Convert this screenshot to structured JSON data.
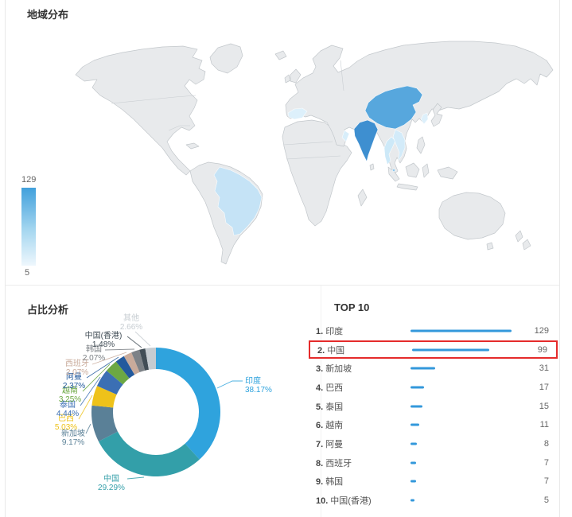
{
  "page": {
    "map_section_title": "地域分布",
    "pie_section_title": "占比分析",
    "top_section_title": "TOP 10"
  },
  "colors": {
    "map_base_fill": "#e8eaec",
    "map_border": "#c2c7cb",
    "legend_high": "#41a0dc",
    "legend_low": "#eef7fd",
    "bar_blue": "#3398db",
    "highlight_red": "#e52b2b"
  },
  "chart_data": [
    {
      "type": "choropleth",
      "title": "地域分布",
      "legend": {
        "max": 129,
        "min": 5
      },
      "regions": [
        {
          "name": "印度",
          "value": 129,
          "color": "#3e8fd0"
        },
        {
          "name": "中国",
          "value": 99,
          "color": "#57a7dd"
        },
        {
          "name": "新加坡",
          "value": 31,
          "color": "#8ec8ee"
        },
        {
          "name": "巴西",
          "value": 17,
          "color": "#c5e3f6"
        },
        {
          "name": "泰国",
          "value": 15,
          "color": "#cde9f8"
        },
        {
          "name": "越南",
          "value": 11,
          "color": "#d3ebf9"
        },
        {
          "name": "阿曼",
          "value": 8,
          "color": "#d8eefa"
        },
        {
          "name": "西班牙",
          "value": 7,
          "color": "#ddf0fb"
        },
        {
          "name": "韩国",
          "value": 7,
          "color": "#ddf0fb"
        },
        {
          "name": "中国(香港)",
          "value": 5,
          "color": "#e2f2fc"
        }
      ]
    },
    {
      "type": "pie",
      "title": "占比分析",
      "slices": [
        {
          "name": "印度",
          "pct": 38.17,
          "color": "#2fa3dd"
        },
        {
          "name": "中国",
          "pct": 29.29,
          "color": "#339fa9"
        },
        {
          "name": "新加坡",
          "pct": 9.17,
          "color": "#5a8097"
        },
        {
          "name": "巴西",
          "pct": 5.03,
          "color": "#eec21a"
        },
        {
          "name": "泰国",
          "pct": 4.44,
          "color": "#3b6fb4"
        },
        {
          "name": "越南",
          "pct": 3.25,
          "color": "#6ca843"
        },
        {
          "name": "阿曼",
          "pct": 2.37,
          "color": "#235a9d"
        },
        {
          "name": "西班牙",
          "pct": 2.07,
          "color": "#c9ab9b"
        },
        {
          "name": "韩国",
          "pct": 2.07,
          "color": "#7d8287"
        },
        {
          "name": "中国(香港)",
          "pct": 1.48,
          "color": "#414d56"
        },
        {
          "name": "其他",
          "pct": 2.66,
          "color": "#c6ccd1"
        }
      ]
    },
    {
      "type": "bar",
      "title": "TOP 10",
      "max_value": 129,
      "items": [
        {
          "rank": "1",
          "name": "印度",
          "value": 129
        },
        {
          "rank": "2",
          "name": "中国",
          "value": 99,
          "highlighted": true
        },
        {
          "rank": "3",
          "name": "新加坡",
          "value": 31
        },
        {
          "rank": "4",
          "name": "巴西",
          "value": 17
        },
        {
          "rank": "5",
          "name": "泰国",
          "value": 15
        },
        {
          "rank": "6",
          "name": "越南",
          "value": 11
        },
        {
          "rank": "7",
          "name": "阿曼",
          "value": 8
        },
        {
          "rank": "8",
          "name": "西班牙",
          "value": 7
        },
        {
          "rank": "9",
          "name": "韩国",
          "value": 7
        },
        {
          "rank": "10",
          "name": "中国(香港)",
          "value": 5
        }
      ]
    }
  ]
}
